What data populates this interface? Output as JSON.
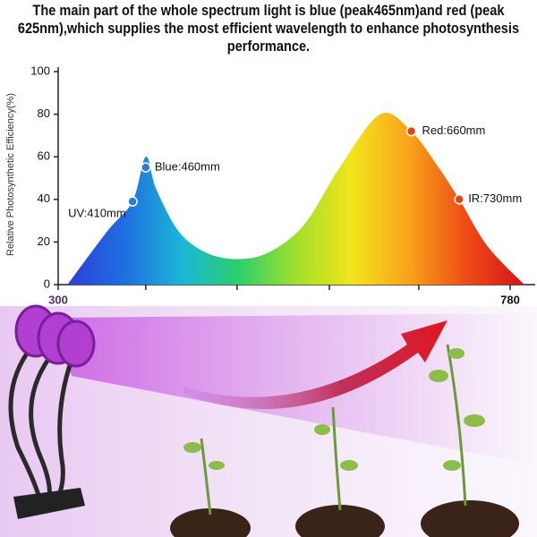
{
  "chart_data": {
    "type": "area",
    "title": "The main part of the whole spectrum light is blue (peak465nm)and red (peak 625nm),which supplies the most efficient wavelength to enhance photosynthesis performance.",
    "ylabel": "Relative Photosynthetic Efficiency(%)",
    "x": [
      310,
      352,
      379,
      393,
      404,
      428,
      457,
      490,
      523,
      561,
      599,
      642,
      675,
      704,
      726,
      756,
      795
    ],
    "values": [
      0,
      25,
      39,
      60,
      45,
      25,
      15,
      12,
      15,
      28,
      55,
      80,
      72,
      55,
      40,
      18,
      0
    ],
    "xlim": [
      300,
      780
    ],
    "ylim": [
      0,
      100
    ],
    "xticks": [
      300,
      780
    ],
    "xminorticks": [
      393,
      490,
      588,
      683
    ],
    "yticks": [
      0,
      20,
      40,
      60,
      80,
      100
    ],
    "fill_colors": [
      "#2d3fd6",
      "#1f6fe0",
      "#1bb6d8",
      "#2ccf6a",
      "#9fe02a",
      "#f4e41c",
      "#f7a11a",
      "#ee4b16",
      "#d4151b"
    ],
    "annotations": [
      {
        "text": "UV:410mm",
        "x": 379,
        "y": 39,
        "color": "#2a7be0"
      },
      {
        "text": "Blue:460mm",
        "x": 393,
        "y": 55,
        "color": "#2a7be0"
      },
      {
        "text": "Red:660mm",
        "x": 675,
        "y": 72,
        "color": "#e8420e"
      },
      {
        "text": "IR:730mm",
        "x": 726,
        "y": 40,
        "color": "#e8420e"
      }
    ]
  }
}
